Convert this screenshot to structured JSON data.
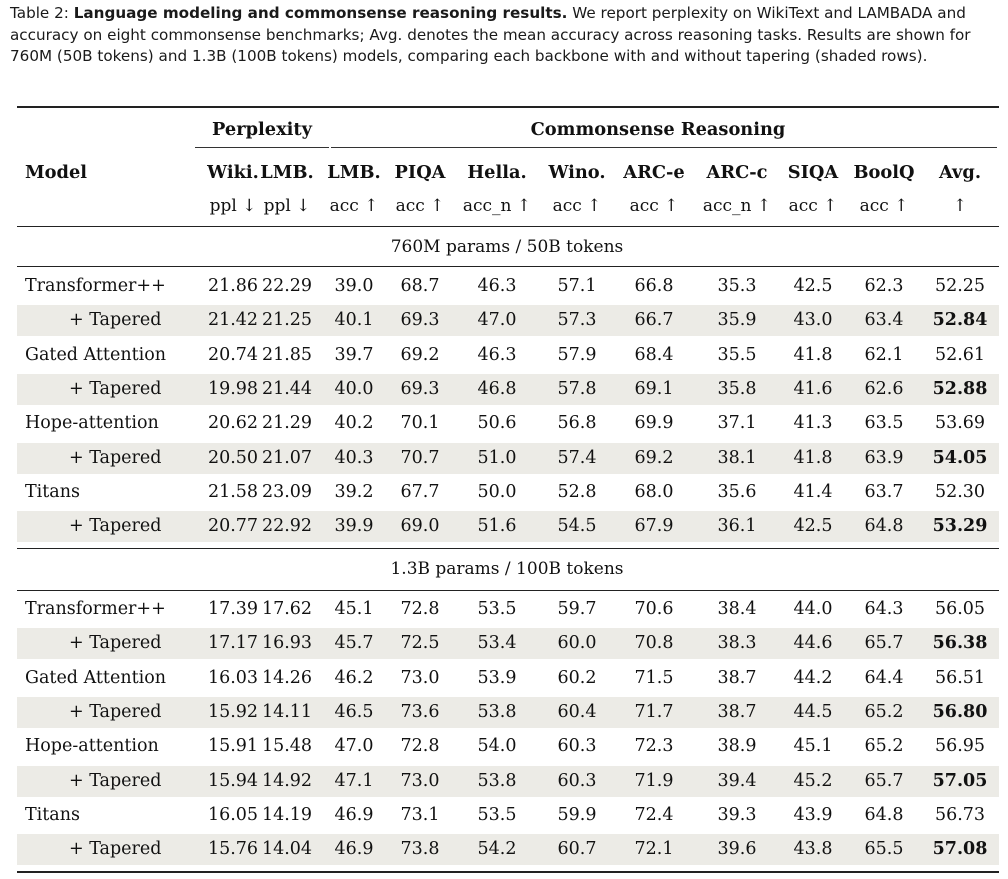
{
  "caption": {
    "label": "Table 2:",
    "bold_title": "Language modeling and commonsense reasoning results.",
    "text": "We report perplexity on WikiText and LAMBADA and accuracy on eight commonsense benchmarks; Avg. denotes the mean accuracy across reasoning tasks. Results are shown for 760M (50B tokens) and 1.3B (100B tokens) models, comparing each backbone with and without tapering (shaded rows)."
  },
  "header": {
    "model": "Model",
    "group_perplexity": "Perplexity",
    "group_commonsense": "Commonsense Reasoning",
    "columns": [
      "Wiki.",
      "LMB.",
      "LMB.",
      "PIQA",
      "Hella.",
      "Wino.",
      "ARC-e",
      "ARC-c",
      "SIQA",
      "BoolQ",
      "Avg."
    ],
    "metrics": [
      "ppl ↓",
      "ppl ↓",
      "acc ↑",
      "acc ↑",
      "acc_n ↑",
      "acc ↑",
      "acc ↑",
      "acc_n ↑",
      "acc ↑",
      "acc ↑",
      "↑"
    ]
  },
  "sections": [
    {
      "title": "760M params / 50B tokens",
      "rows": [
        {
          "model": "Transformer++",
          "values": [
            "21.86",
            "22.29",
            "39.0",
            "68.7",
            "46.3",
            "57.1",
            "66.8",
            "35.3",
            "42.5",
            "62.3",
            "52.25"
          ],
          "shaded": false,
          "best_avg": false
        },
        {
          "model": "+ Tapered",
          "values": [
            "21.42",
            "21.25",
            "40.1",
            "69.3",
            "47.0",
            "57.3",
            "66.7",
            "35.9",
            "43.0",
            "63.4",
            "52.84"
          ],
          "shaded": true,
          "best_avg": true
        },
        {
          "model": "Gated Attention",
          "values": [
            "20.74",
            "21.85",
            "39.7",
            "69.2",
            "46.3",
            "57.9",
            "68.4",
            "35.5",
            "41.8",
            "62.1",
            "52.61"
          ],
          "shaded": false,
          "best_avg": false
        },
        {
          "model": "+ Tapered",
          "values": [
            "19.98",
            "21.44",
            "40.0",
            "69.3",
            "46.8",
            "57.8",
            "69.1",
            "35.8",
            "41.6",
            "62.6",
            "52.88"
          ],
          "shaded": true,
          "best_avg": true
        },
        {
          "model": "Hope-attention",
          "values": [
            "20.62",
            "21.29",
            "40.2",
            "70.1",
            "50.6",
            "56.8",
            "69.9",
            "37.1",
            "41.3",
            "63.5",
            "53.69"
          ],
          "shaded": false,
          "best_avg": false
        },
        {
          "model": "+ Tapered",
          "values": [
            "20.50",
            "21.07",
            "40.3",
            "70.7",
            "51.0",
            "57.4",
            "69.2",
            "38.1",
            "41.8",
            "63.9",
            "54.05"
          ],
          "shaded": true,
          "best_avg": true
        },
        {
          "model": "Titans",
          "values": [
            "21.58",
            "23.09",
            "39.2",
            "67.7",
            "50.0",
            "52.8",
            "68.0",
            "35.6",
            "41.4",
            "63.7",
            "52.30"
          ],
          "shaded": false,
          "best_avg": false
        },
        {
          "model": "+ Tapered",
          "values": [
            "20.77",
            "22.92",
            "39.9",
            "69.0",
            "51.6",
            "54.5",
            "67.9",
            "36.1",
            "42.5",
            "64.8",
            "53.29"
          ],
          "shaded": true,
          "best_avg": true
        }
      ]
    },
    {
      "title": "1.3B params / 100B tokens",
      "rows": [
        {
          "model": "Transformer++",
          "values": [
            "17.39",
            "17.62",
            "45.1",
            "72.8",
            "53.5",
            "59.7",
            "70.6",
            "38.4",
            "44.0",
            "64.3",
            "56.05"
          ],
          "shaded": false,
          "best_avg": false
        },
        {
          "model": "+ Tapered",
          "values": [
            "17.17",
            "16.93",
            "45.7",
            "72.5",
            "53.4",
            "60.0",
            "70.8",
            "38.3",
            "44.6",
            "65.7",
            "56.38"
          ],
          "shaded": true,
          "best_avg": true
        },
        {
          "model": "Gated Attention",
          "values": [
            "16.03",
            "14.26",
            "46.2",
            "73.0",
            "53.9",
            "60.2",
            "71.5",
            "38.7",
            "44.2",
            "64.4",
            "56.51"
          ],
          "shaded": false,
          "best_avg": false
        },
        {
          "model": "+ Tapered",
          "values": [
            "15.92",
            "14.11",
            "46.5",
            "73.6",
            "53.8",
            "60.4",
            "71.7",
            "38.7",
            "44.5",
            "65.2",
            "56.80"
          ],
          "shaded": true,
          "best_avg": true
        },
        {
          "model": "Hope-attention",
          "values": [
            "15.91",
            "15.48",
            "47.0",
            "72.8",
            "54.0",
            "60.3",
            "72.3",
            "38.9",
            "45.1",
            "65.2",
            "56.95"
          ],
          "shaded": false,
          "best_avg": false
        },
        {
          "model": "+ Tapered",
          "values": [
            "15.94",
            "14.92",
            "47.1",
            "73.0",
            "53.8",
            "60.3",
            "71.9",
            "39.4",
            "45.2",
            "65.7",
            "57.05"
          ],
          "shaded": true,
          "best_avg": true
        },
        {
          "model": "Titans",
          "values": [
            "16.05",
            "14.19",
            "46.9",
            "73.1",
            "53.5",
            "59.9",
            "72.4",
            "39.3",
            "43.9",
            "64.8",
            "56.73"
          ],
          "shaded": false,
          "best_avg": false
        },
        {
          "model": "+ Tapered",
          "values": [
            "15.76",
            "14.04",
            "46.9",
            "73.8",
            "54.2",
            "60.7",
            "72.1",
            "39.6",
            "43.8",
            "65.5",
            "57.08"
          ],
          "shaded": true,
          "best_avg": true
        }
      ]
    }
  ]
}
